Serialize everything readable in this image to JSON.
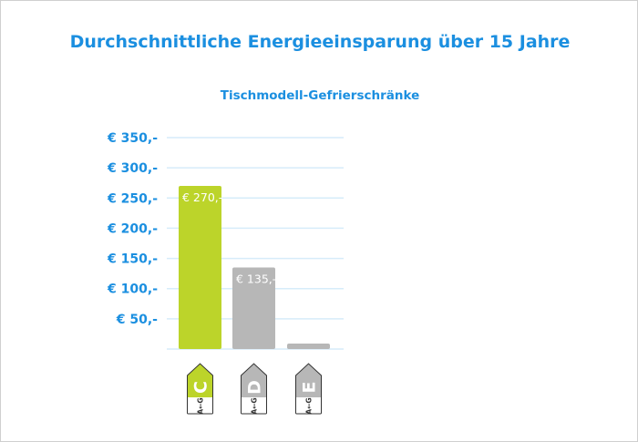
{
  "chart_data": {
    "type": "bar",
    "title": "Durchschnittliche Energieeinsparung über 15 Jahre",
    "subtitle": "Tischmodell-Gefrierschränke",
    "categories": [
      "C",
      "D",
      "E"
    ],
    "category_scale_label": "A←G",
    "values": [
      270,
      135,
      9
    ],
    "data_labels": [
      "€ 270,-",
      "€ 135,-",
      ""
    ],
    "ylim": [
      0,
      350
    ],
    "yticks": [
      50,
      100,
      150,
      200,
      250,
      300,
      350
    ],
    "ytick_labels": [
      "€ 50,-",
      "€ 100,-",
      "€ 150,-",
      "€ 200,-",
      "€ 250,-",
      "€ 300,-",
      "€ 350,-"
    ],
    "grid": true,
    "colors": {
      "highlight": "#bcd42a",
      "other": "#b7b7b7",
      "text": "#1b8fe0",
      "grid": "#d6ecfa"
    }
  }
}
